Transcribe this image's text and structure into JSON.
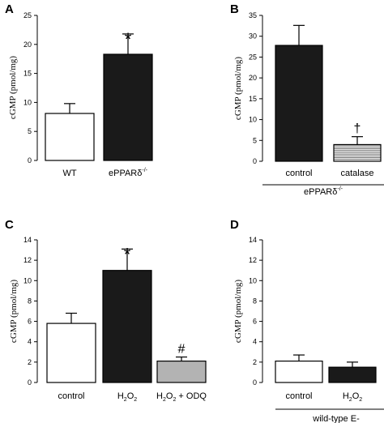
{
  "colors": {
    "white": "#ffffff",
    "black": "#1a1a1a",
    "gray": "#b3b3b3",
    "hatch": "#555555"
  },
  "chart_data": [
    {
      "type": "bar",
      "panel": "A",
      "ylabel": "cGMP (pmol/mg)",
      "ylim": [
        0,
        25
      ],
      "yticks": [
        "0",
        "5",
        "10",
        "15",
        "20",
        "25"
      ],
      "yticks_values": [
        0,
        5,
        10,
        15,
        20,
        25
      ],
      "categories": [
        "WT",
        "ePPARδ-/-"
      ],
      "category_labels": [
        {
          "main": "WT",
          "sup": ""
        },
        {
          "main": "ePPARδ",
          "sup": "-/-"
        }
      ],
      "values": [
        8.1,
        18.3
      ],
      "errors": [
        1.7,
        3.5
      ],
      "fills": [
        "white",
        "black"
      ],
      "markers": [
        "",
        "*"
      ],
      "group_label": ""
    },
    {
      "type": "bar",
      "panel": "B",
      "ylabel": "cGMP (pmol/mg)",
      "ylim": [
        0,
        35
      ],
      "yticks": [
        "0",
        "5",
        "10",
        "15",
        "20",
        "25",
        "30",
        "35"
      ],
      "yticks_values": [
        0,
        5,
        10,
        15,
        20,
        25,
        30,
        35
      ],
      "categories": [
        "control",
        "catalase"
      ],
      "category_labels": [
        {
          "main": "control",
          "sup": ""
        },
        {
          "main": "catalase",
          "sup": ""
        }
      ],
      "values": [
        27.8,
        4.0
      ],
      "errors": [
        4.8,
        1.9
      ],
      "fills": [
        "black",
        "hatch"
      ],
      "markers": [
        "",
        "†"
      ],
      "group_label": "ePPARδ-/-",
      "group_label_parts": {
        "main": "ePPARδ",
        "sup": "-/-"
      }
    },
    {
      "type": "bar",
      "panel": "C",
      "ylabel": "cGMP (pmol/mg)",
      "ylim": [
        0,
        14
      ],
      "yticks": [
        "0",
        "2",
        "4",
        "6",
        "8",
        "10",
        "12",
        "14"
      ],
      "yticks_values": [
        0,
        2,
        4,
        6,
        8,
        10,
        12,
        14
      ],
      "categories": [
        "control",
        "H2O2",
        "H2O2 + ODQ"
      ],
      "category_labels": [
        {
          "main": "control",
          "sub": "",
          "rest": ""
        },
        {
          "main": "H",
          "sub": "2",
          "mid": "O",
          "sub2": "2",
          "rest": ""
        },
        {
          "main": "H",
          "sub": "2",
          "mid": "O",
          "sub2": "2",
          "rest": " + ODQ"
        }
      ],
      "values": [
        5.8,
        11.0,
        2.1
      ],
      "errors": [
        1.0,
        2.1,
        0.4
      ],
      "fills": [
        "white",
        "black",
        "gray"
      ],
      "markers": [
        "",
        "*",
        "#"
      ],
      "group_label": ""
    },
    {
      "type": "bar",
      "panel": "D",
      "ylabel": "cGMP (pmol/mg)",
      "ylim": [
        0,
        14
      ],
      "yticks": [
        "0",
        "2",
        "4",
        "6",
        "8",
        "10",
        "12",
        "14"
      ],
      "yticks_values": [
        0,
        2,
        4,
        6,
        8,
        10,
        12,
        14
      ],
      "categories": [
        "control",
        "H2O2"
      ],
      "category_labels": [
        {
          "main": "control",
          "sub": "",
          "rest": ""
        },
        {
          "main": "H",
          "sub": "2",
          "mid": "O",
          "sub2": "2",
          "rest": ""
        }
      ],
      "values": [
        2.1,
        1.5
      ],
      "errors": [
        0.6,
        0.5
      ],
      "fills": [
        "white",
        "black"
      ],
      "markers": [
        "",
        ""
      ],
      "group_label": "wild-type E-"
    }
  ]
}
